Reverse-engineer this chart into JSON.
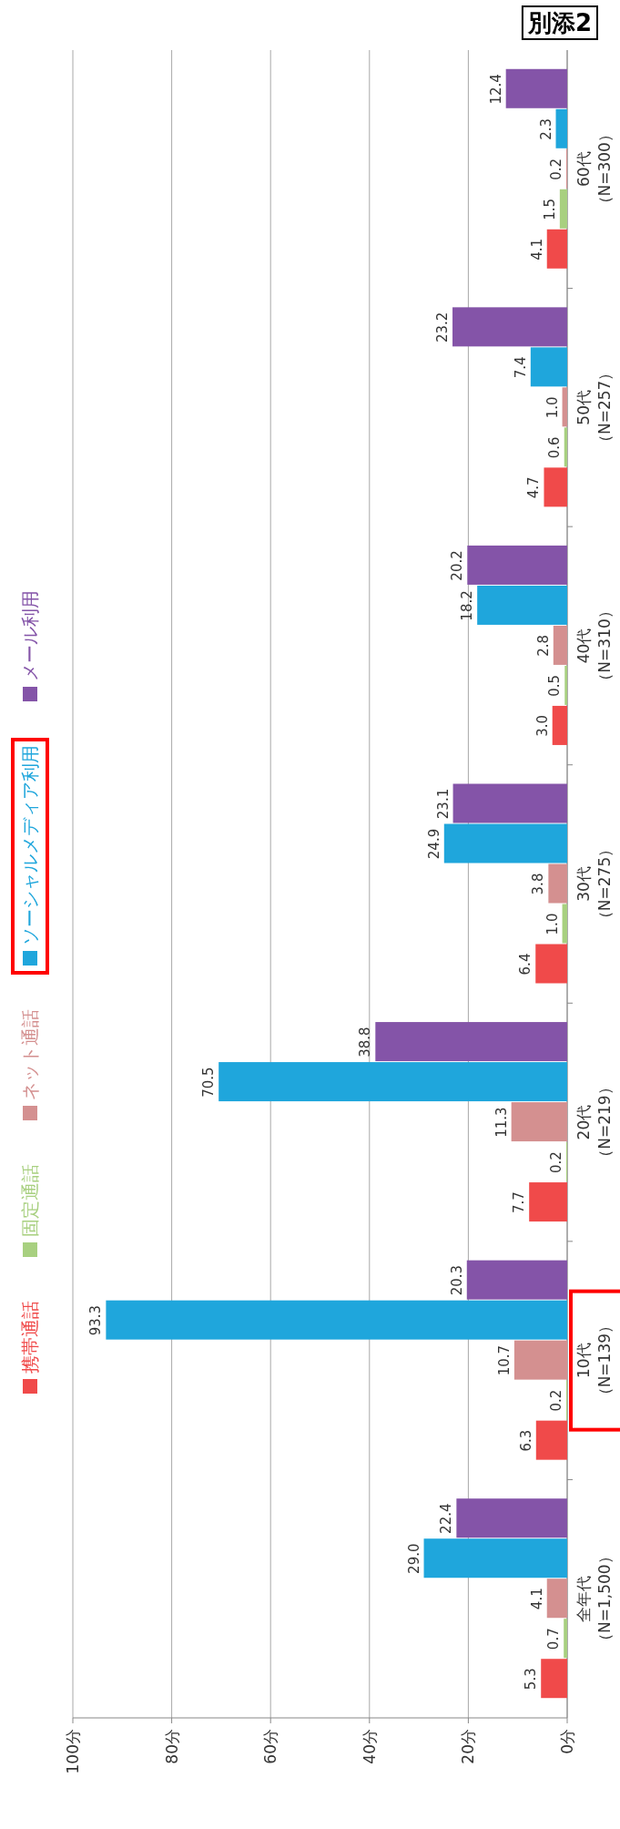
{
  "chart_data": {
    "type": "bar",
    "orientation": "horizontal",
    "categories": [
      "60代（N=300）",
      "50代（N=257）",
      "40代（N=310）",
      "30代（N=275）",
      "20代（N=219）",
      "10代（N=139）",
      "全年代（N=1,500）"
    ],
    "series": [
      {
        "name": "携帯通話",
        "color": "#f04a4a",
        "values": [
          4.1,
          4.7,
          3.0,
          6.4,
          7.7,
          6.3,
          5.3
        ],
        "value_labels": [
          "4.1",
          "4.7",
          "3.0",
          "6.4",
          "7.7",
          "6.3",
          "5.3"
        ]
      },
      {
        "name": "固定通話",
        "color": "#a8d080",
        "values": [
          1.5,
          0.6,
          0.5,
          1.0,
          0.2,
          0.2,
          0.7
        ],
        "value_labels": [
          "1.5",
          "0.6",
          "0.5",
          "1.0",
          "0.2",
          "0.2",
          "0.7"
        ]
      },
      {
        "name": "ネット通話",
        "color": "#d49090",
        "values": [
          0.2,
          1.0,
          2.8,
          3.8,
          11.3,
          10.7,
          4.1
        ],
        "value_labels": [
          "0.2",
          "1.0",
          "2.8",
          "3.8",
          "11.3",
          "10.7",
          "4.1"
        ]
      },
      {
        "name": "ソーシャルメディア利用",
        "color": "#1fa6dc",
        "values": [
          2.3,
          7.4,
          18.2,
          24.9,
          70.5,
          93.3,
          29.0
        ],
        "value_labels": [
          "2.3",
          "7.4",
          "18.2",
          "24.9",
          "70.5",
          "93.3",
          "29.0"
        ]
      },
      {
        "name": "メール利用",
        "color": "#8454a8",
        "values": [
          12.4,
          23.2,
          20.2,
          23.1,
          38.8,
          20.3,
          22.4
        ],
        "value_labels": [
          "12.4",
          "23.2",
          "20.2",
          "23.1",
          "38.8",
          "20.3",
          "22.4"
        ]
      }
    ],
    "xlim": [
      100,
      0
    ],
    "xticks": [
      {
        "value": 100,
        "label": "100分"
      },
      {
        "value": 80,
        "label": "80分"
      },
      {
        "value": 60,
        "label": "60分"
      },
      {
        "value": 40,
        "label": "40分"
      },
      {
        "value": 20,
        "label": "20分"
      },
      {
        "value": 0,
        "label": "0分"
      }
    ],
    "grid": "x",
    "legend": "left",
    "annotations": [
      "別添2"
    ]
  }
}
